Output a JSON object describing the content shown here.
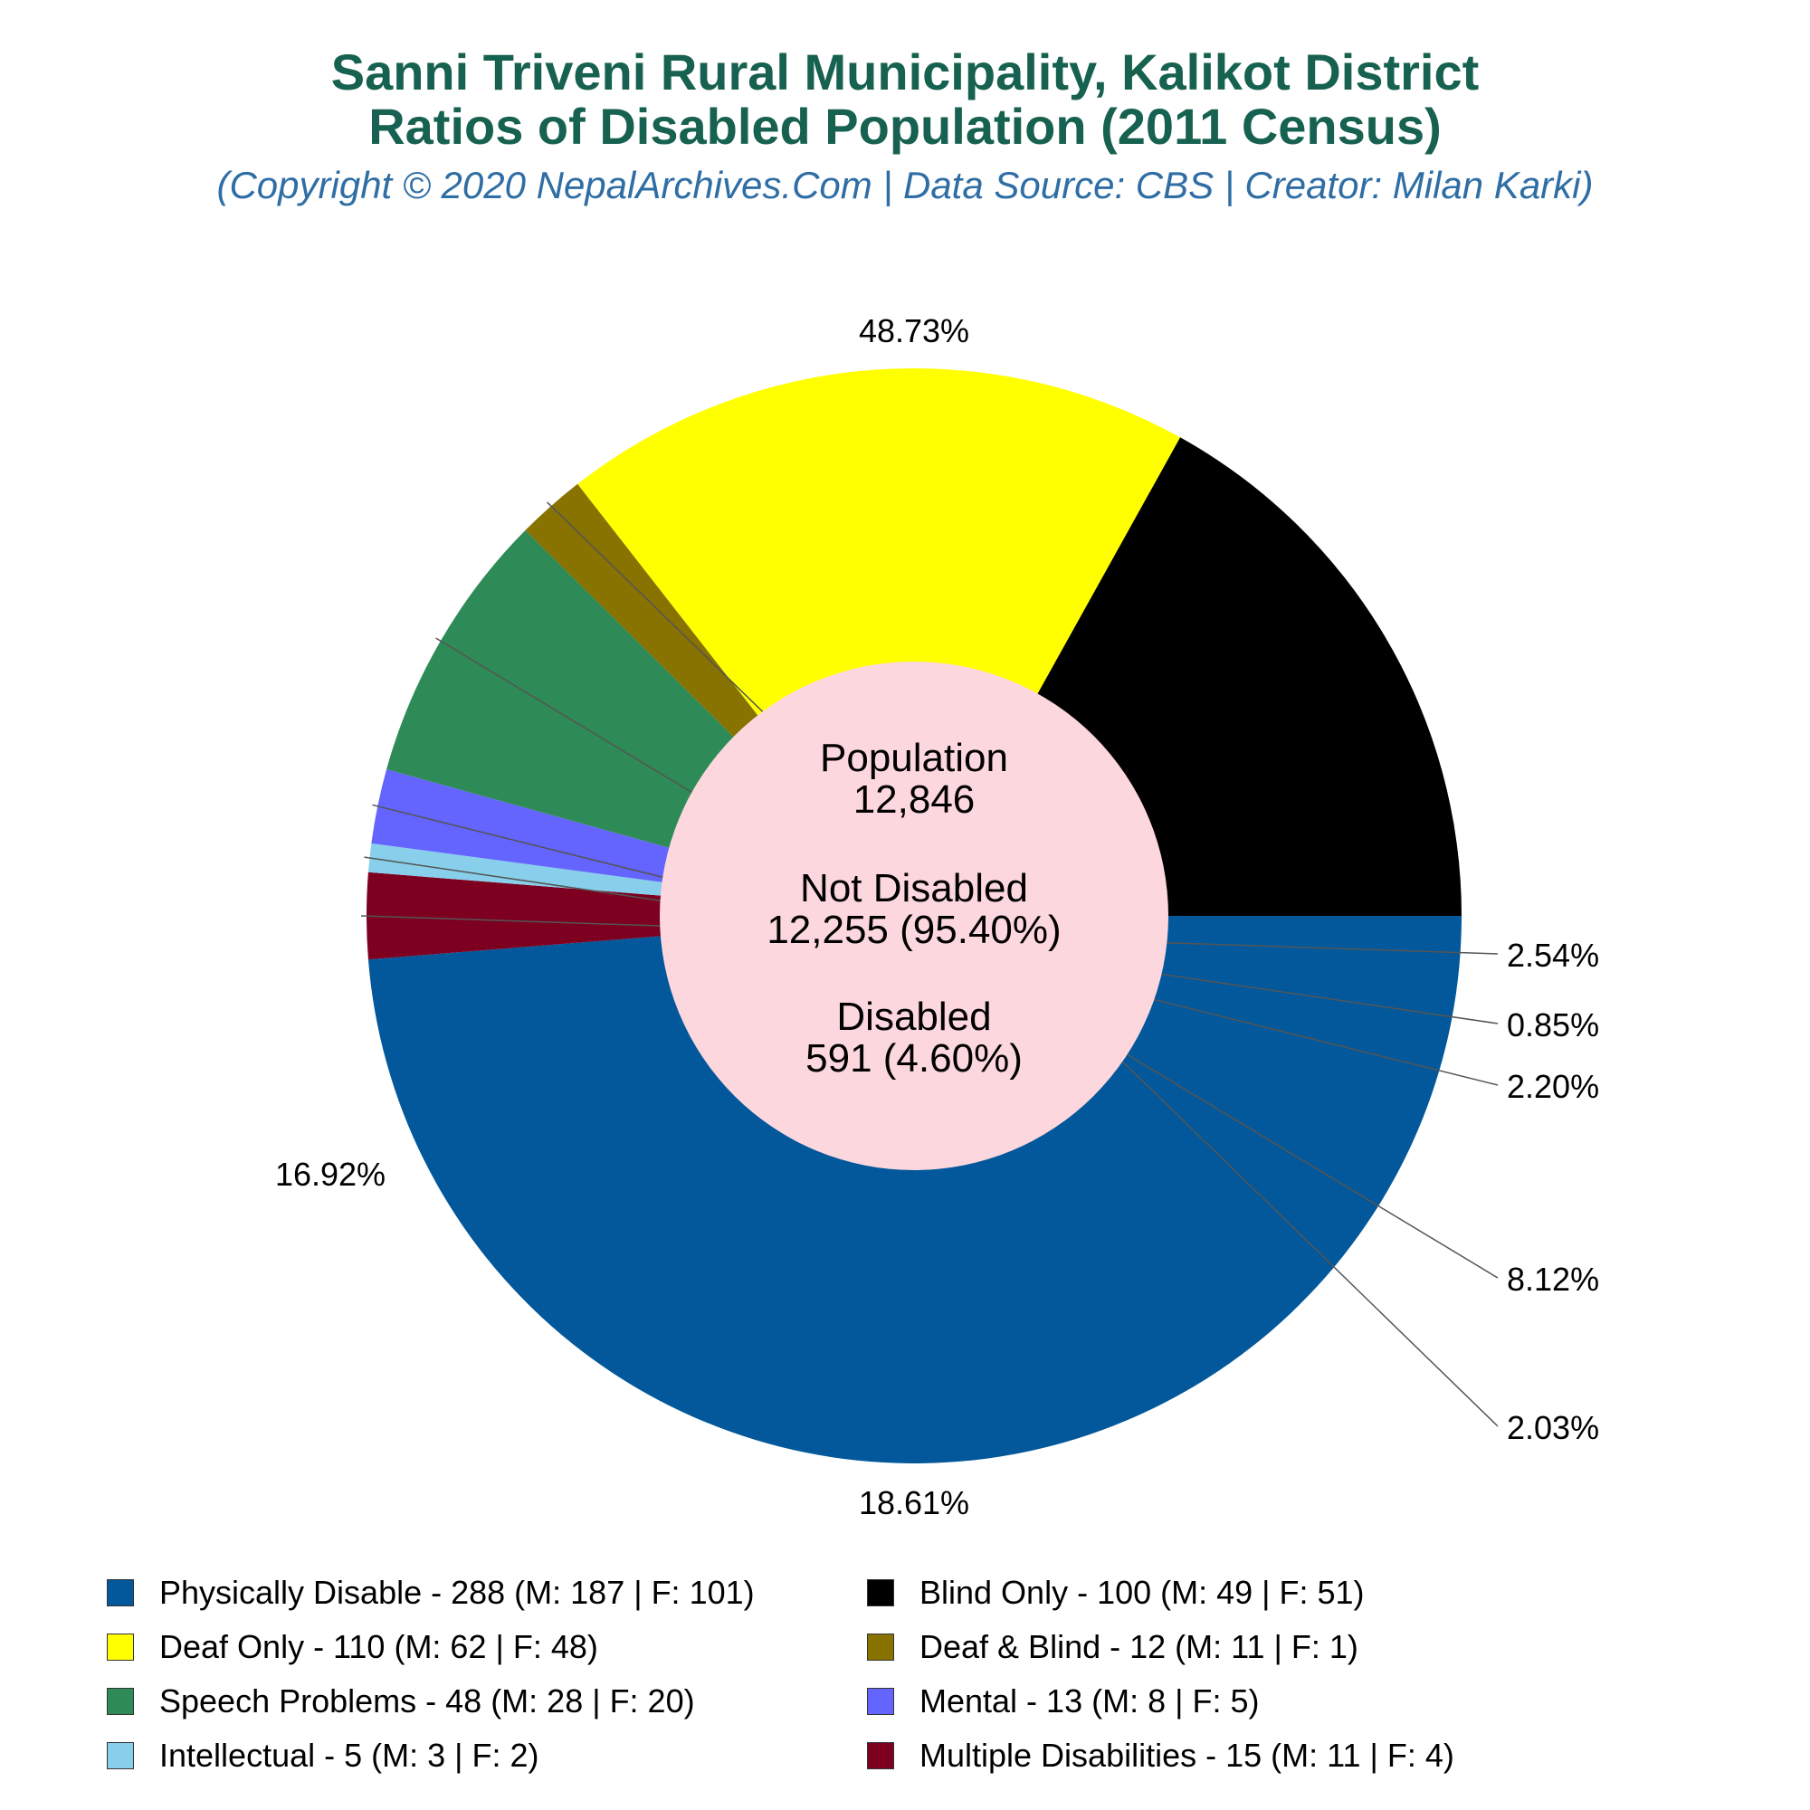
{
  "title_line1": "Sanni Triveni Rural Municipality, Kalikot District",
  "title_line2": "Ratios of Disabled Population (2011 Census)",
  "subtitle": "(Copyright © 2020 NepalArchives.Com | Data Source: CBS | Creator: Milan Karki)",
  "center": {
    "population_label": "Population",
    "population_value": "12,846",
    "not_disabled_label": "Not Disabled",
    "not_disabled_value": "12,255 (95.40%)",
    "disabled_label": "Disabled",
    "disabled_value": "591 (4.60%)"
  },
  "center_color": "#fdd7de",
  "chart_data": {
    "type": "pie",
    "donut": true,
    "total": 591,
    "slices": [
      {
        "label": "Physically Disable - 288 (M: 187 | F: 101)",
        "value": 288,
        "percent_label": "48.73%",
        "color": "#02589a"
      },
      {
        "label": "Multiple Disabilities - 15 (M: 11 | F: 4)",
        "value": 15,
        "percent_label": "2.54%",
        "color": "#7d0021"
      },
      {
        "label": "Intellectual - 5 (M: 3 | F: 2)",
        "value": 5,
        "percent_label": "0.85%",
        "color": "#87cfeb"
      },
      {
        "label": "Mental - 13 (M: 8 | F: 5)",
        "value": 13,
        "percent_label": "2.20%",
        "color": "#6464fe"
      },
      {
        "label": "Speech Problems - 48 (M: 28 | F: 20)",
        "value": 48,
        "percent_label": "8.12%",
        "color": "#2e8b57"
      },
      {
        "label": "Deaf & Blind - 12 (M: 11 | F: 1)",
        "value": 12,
        "percent_label": "2.03%",
        "color": "#887200"
      },
      {
        "label": "Deaf Only - 110 (M: 62 | F: 48)",
        "value": 110,
        "percent_label": "18.61%",
        "color": "#ffff00"
      },
      {
        "label": "Blind Only - 100 (M: 49 | F: 51)",
        "value": 100,
        "percent_label": "16.92%",
        "color": "#000000"
      }
    ],
    "legend_order": [
      "Physically Disable - 288 (M: 187 | F: 101)",
      "Blind Only - 100 (M: 49 | F: 51)",
      "Deaf Only - 110 (M: 62 | F: 48)",
      "Deaf & Blind - 12 (M: 11 | F: 1)",
      "Speech Problems - 48 (M: 28 | F: 20)",
      "Mental - 13 (M: 8 | F: 5)",
      "Intellectual - 5 (M: 3 | F: 2)",
      "Multiple Disabilities - 15 (M: 11 | F: 4)"
    ],
    "legend_placement": "bottom"
  }
}
